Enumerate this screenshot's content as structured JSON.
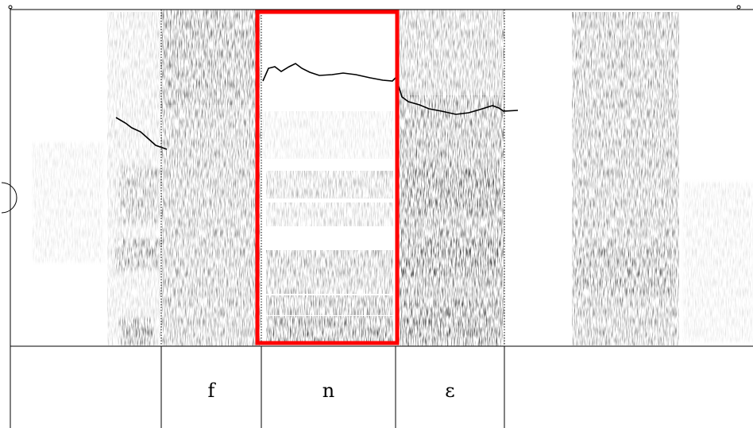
{
  "tiers": [
    {
      "label": "",
      "start": 0.0,
      "end": 0.19
    },
    {
      "label": "f",
      "start": 0.19,
      "end": 0.32
    },
    {
      "label": "n",
      "start": 0.32,
      "end": 0.5
    },
    {
      "label": "ɛ",
      "start": 0.5,
      "end": 0.645
    },
    {
      "label": "",
      "start": 0.645,
      "end": 1.0
    }
  ],
  "highlight": {
    "segment": "n",
    "color": "#ff0000"
  },
  "colors": {
    "spectrogram": "#222222",
    "pitch": "#000000",
    "boundary": "#000000"
  }
}
